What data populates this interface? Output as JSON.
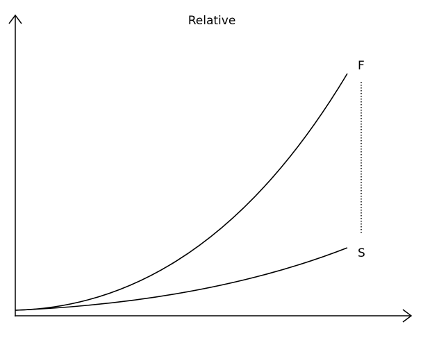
{
  "title": "Relative",
  "curves": [
    {
      "label": "F"
    },
    {
      "label": "S"
    }
  ]
}
